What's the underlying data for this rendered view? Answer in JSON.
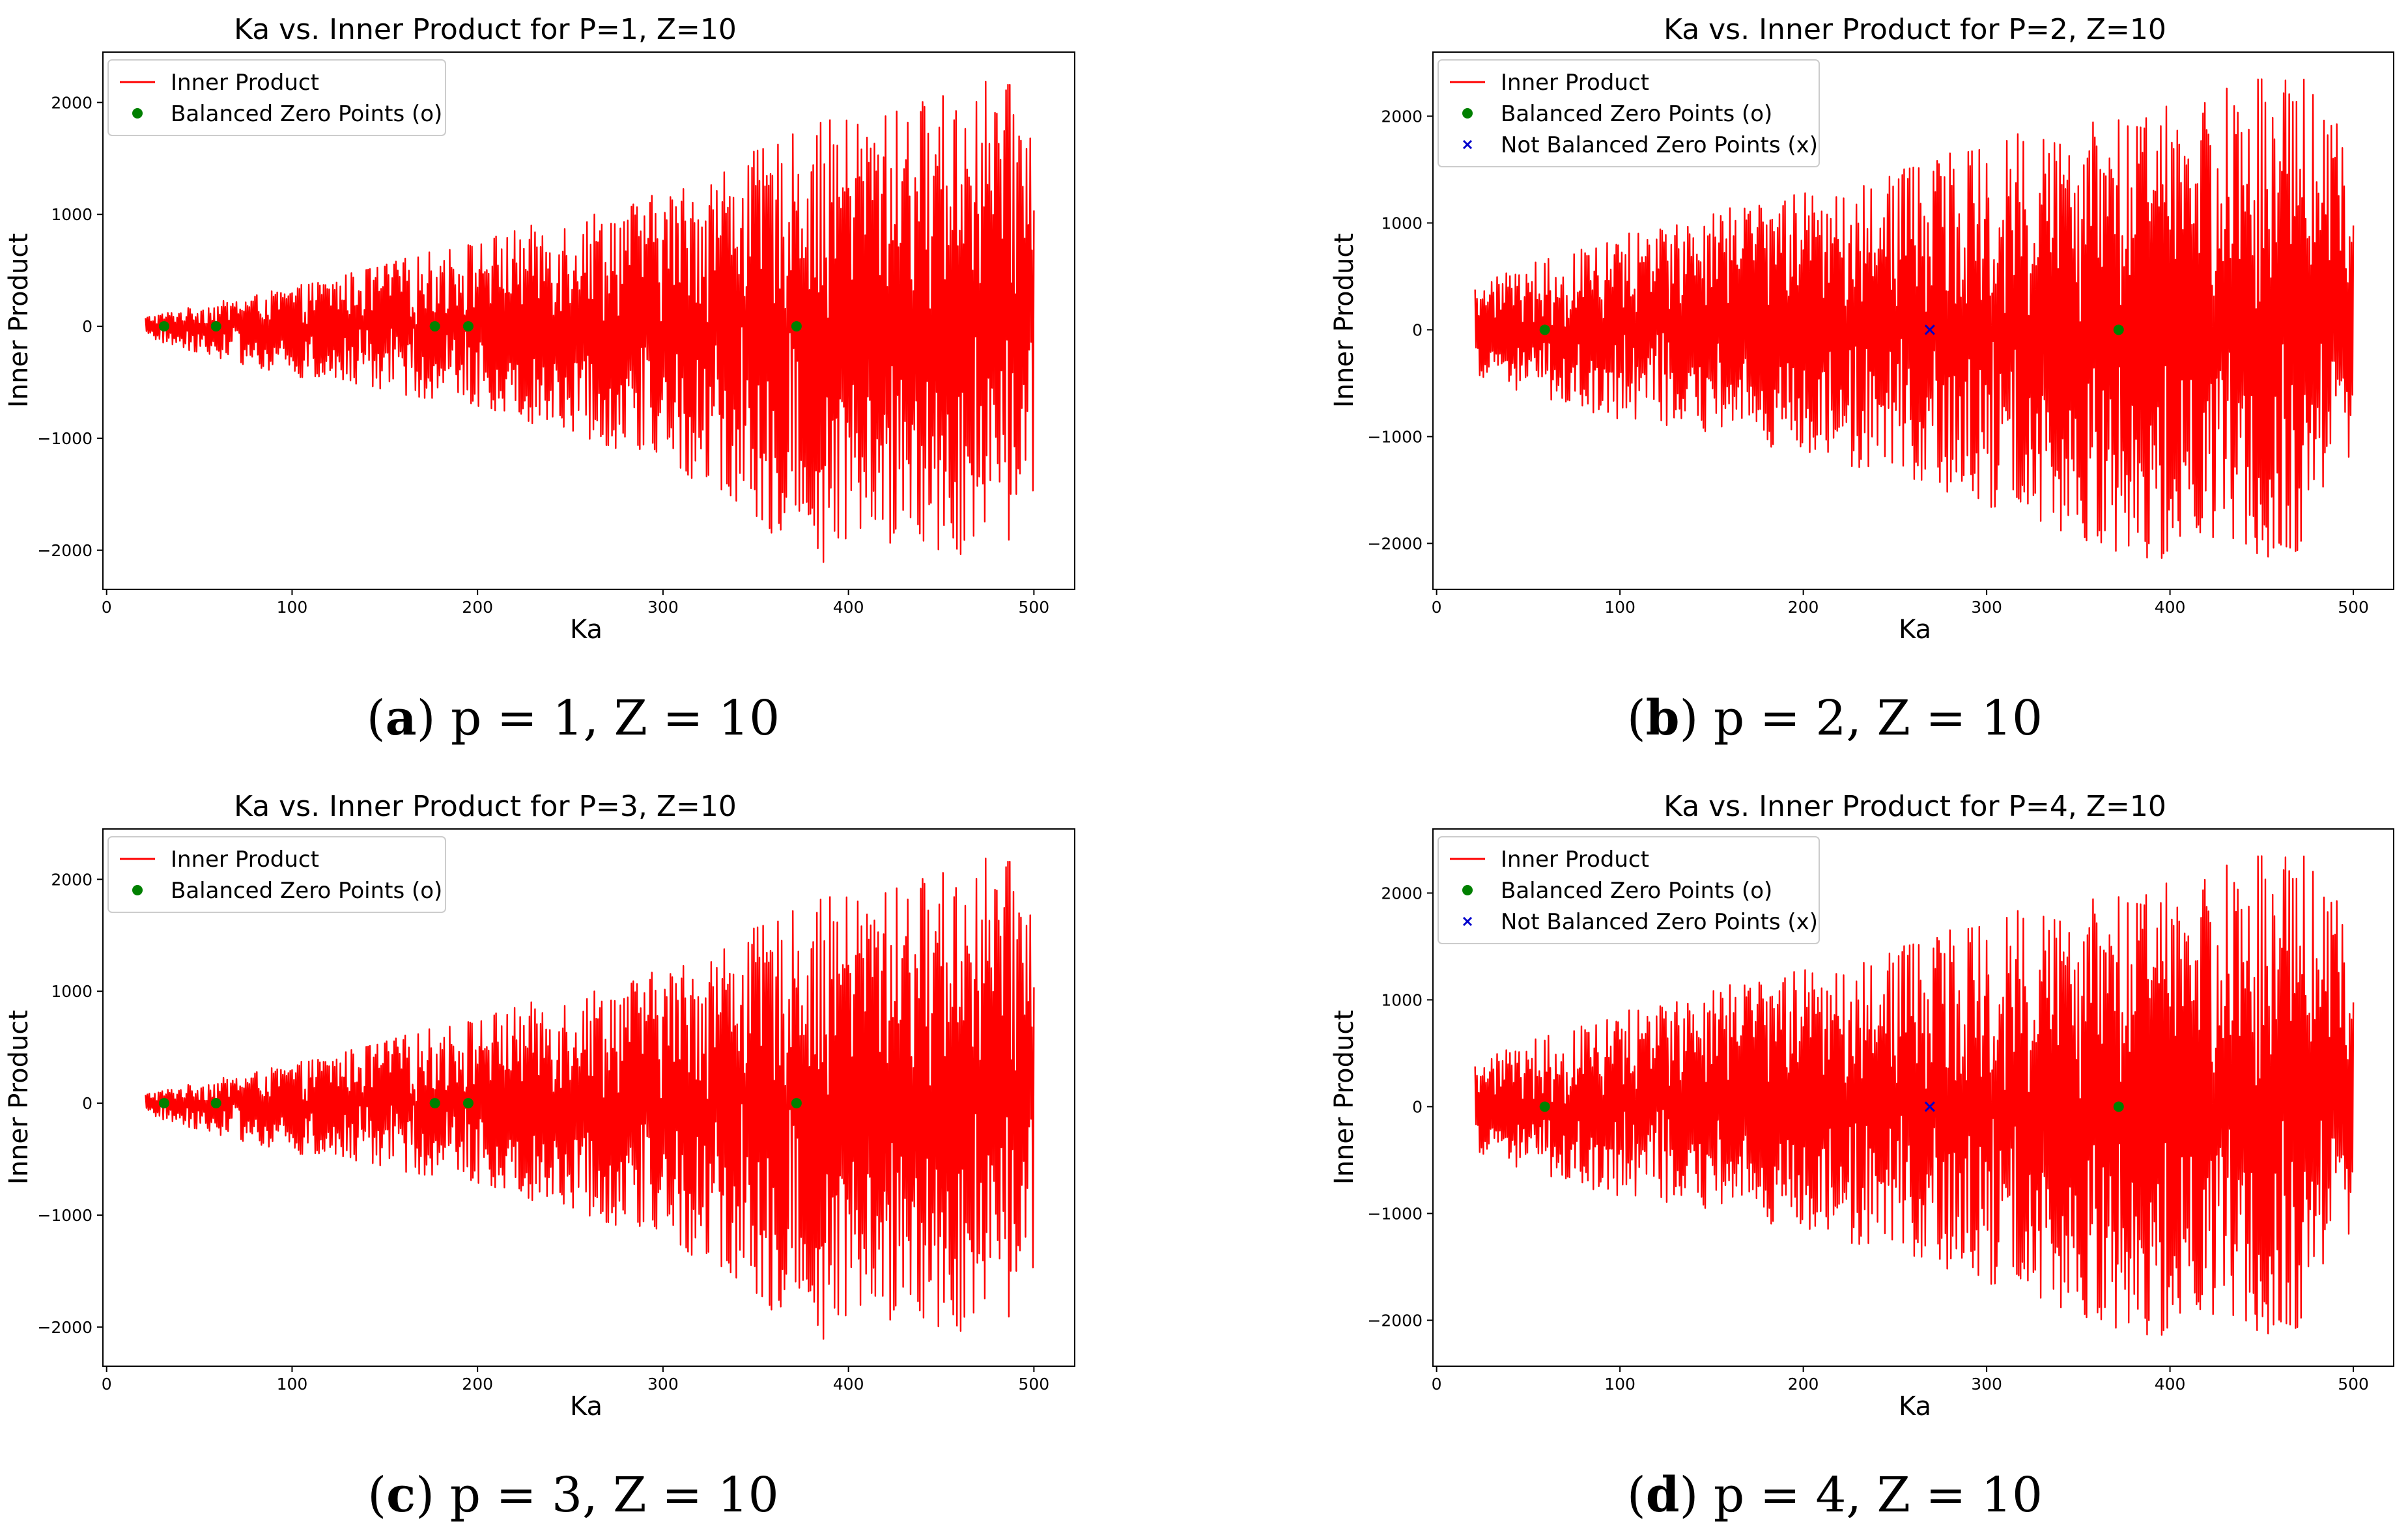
{
  "colors": {
    "line": "#ff0000",
    "balanced": "#008000",
    "not_balanced": "#0000cc"
  },
  "chart_data": [
    {
      "id": "a",
      "type": "line",
      "title": "Ka vs. Inner Product for P=1, Z=10",
      "xlabel": "Ka",
      "ylabel": "Inner Product",
      "xlim": [
        -2,
        522
      ],
      "ylim": [
        -2350,
        2450
      ],
      "xticks": [
        0,
        100,
        200,
        300,
        400,
        500
      ],
      "yticks": [
        -2000,
        -1000,
        0,
        1000,
        2000
      ],
      "ytick_labels": [
        "−2000",
        "−1000",
        "0",
        "1000",
        "2000"
      ],
      "grid": false,
      "legend_position": "upper-left",
      "series": [
        {
          "name": "Inner Product",
          "marker": "line",
          "x_range": [
            21,
            500
          ],
          "envelope": {
            "x": [
              21,
              100,
              200,
              300,
              385,
              420,
              480,
              500
            ],
            "upper": [
              90,
              350,
              780,
              1200,
              1830,
              1930,
              2250,
              2000
            ],
            "lower": [
              -110,
              -460,
              -720,
              -1220,
              -2130,
              -1950,
              -2100,
              -1600
            ]
          }
        },
        {
          "name": "Balanced Zero Points (o)",
          "marker": "o",
          "x": [
            31,
            59,
            177,
            195,
            372
          ],
          "y": [
            0,
            0,
            0,
            0,
            0
          ]
        }
      ],
      "caption": {
        "label": "a",
        "text": "p = 1, Z = 10"
      }
    },
    {
      "id": "b",
      "type": "line",
      "title": "Ka vs. Inner Product for P=2, Z=10",
      "xlabel": "Ka",
      "ylabel": "Inner Product",
      "xlim": [
        -2,
        522
      ],
      "ylim": [
        -2430,
        2600
      ],
      "xticks": [
        0,
        100,
        200,
        300,
        400,
        500
      ],
      "yticks": [
        -2000,
        -1000,
        0,
        1000,
        2000
      ],
      "ytick_labels": [
        "−2000",
        "−1000",
        "0",
        "1000",
        "2000"
      ],
      "grid": false,
      "legend_position": "upper-left",
      "series": [
        {
          "name": "Inner Product",
          "marker": "line",
          "x_range": [
            21,
            500
          ],
          "envelope": {
            "x": [
              21,
              100,
              200,
              300,
              380,
              470,
              500
            ],
            "upper": [
              450,
              900,
              1300,
              1800,
              2000,
              2520,
              1750
            ],
            "lower": [
              -450,
              -850,
              -1150,
              -1650,
              -2150,
              -2200,
              -1100
            ]
          }
        },
        {
          "name": "Balanced Zero Points (o)",
          "marker": "o",
          "x": [
            59,
            372
          ],
          "y": [
            0,
            0
          ]
        },
        {
          "name": "Not Balanced Zero Points (x)",
          "marker": "x",
          "x": [
            269
          ],
          "y": [
            0
          ]
        }
      ],
      "caption": {
        "label": "b",
        "text": "p = 2, Z = 10"
      }
    },
    {
      "id": "c",
      "type": "line",
      "title": "Ka vs. Inner Product for P=3, Z=10",
      "xlabel": "Ka",
      "ylabel": "Inner Product",
      "xlim": [
        -2,
        522
      ],
      "ylim": [
        -2350,
        2450
      ],
      "xticks": [
        0,
        100,
        200,
        300,
        400,
        500
      ],
      "yticks": [
        -2000,
        -1000,
        0,
        1000,
        2000
      ],
      "ytick_labels": [
        "−2000",
        "−1000",
        "0",
        "1000",
        "2000"
      ],
      "grid": false,
      "legend_position": "upper-left",
      "series": [
        {
          "name": "Inner Product",
          "marker": "line",
          "x_range": [
            21,
            500
          ],
          "envelope": {
            "x": [
              21,
              100,
              200,
              300,
              385,
              420,
              480,
              500
            ],
            "upper": [
              90,
              350,
              780,
              1200,
              1830,
              1930,
              2250,
              2000
            ],
            "lower": [
              -110,
              -460,
              -720,
              -1220,
              -2130,
              -1950,
              -2100,
              -1600
            ]
          }
        },
        {
          "name": "Balanced Zero Points (o)",
          "marker": "o",
          "x": [
            31,
            59,
            177,
            195,
            372
          ],
          "y": [
            0,
            0,
            0,
            0,
            0
          ]
        }
      ],
      "caption": {
        "label": "c",
        "text": "p = 3, Z = 10"
      }
    },
    {
      "id": "d",
      "type": "line",
      "title": "Ka vs. Inner Product for P=4, Z=10",
      "xlabel": "Ka",
      "ylabel": "Inner Product",
      "xlim": [
        -2,
        522
      ],
      "ylim": [
        -2430,
        2600
      ],
      "xticks": [
        0,
        100,
        200,
        300,
        400,
        500
      ],
      "yticks": [
        -2000,
        -1000,
        0,
        1000,
        2000
      ],
      "ytick_labels": [
        "−2000",
        "−1000",
        "0",
        "1000",
        "2000"
      ],
      "grid": false,
      "legend_position": "upper-left",
      "series": [
        {
          "name": "Inner Product",
          "marker": "line",
          "x_range": [
            21,
            500
          ],
          "envelope": {
            "x": [
              21,
              100,
              200,
              300,
              380,
              470,
              500
            ],
            "upper": [
              450,
              900,
              1300,
              1800,
              2000,
              2520,
              1750
            ],
            "lower": [
              -450,
              -850,
              -1150,
              -1650,
              -2150,
              -2200,
              -1100
            ]
          }
        },
        {
          "name": "Balanced Zero Points (o)",
          "marker": "o",
          "x": [
            59,
            372
          ],
          "y": [
            0,
            0
          ]
        },
        {
          "name": "Not Balanced Zero Points (x)",
          "marker": "x",
          "x": [
            269
          ],
          "y": [
            0
          ]
        }
      ],
      "caption": {
        "label": "d",
        "text": "p = 4, Z = 10"
      }
    }
  ]
}
